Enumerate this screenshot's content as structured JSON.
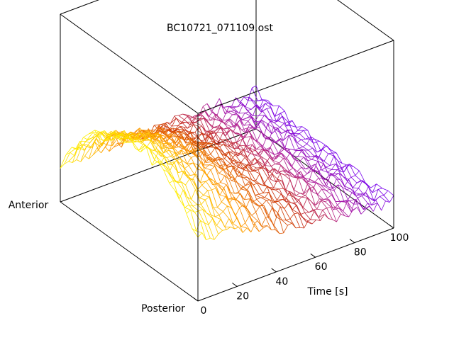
{
  "chart_data": {
    "type": "surface",
    "title": "BC10721_071109.ost",
    "xlabel": "Time [s]",
    "x_ticks": [
      0,
      20,
      40,
      60,
      80,
      100
    ],
    "xlim": [
      0,
      100
    ],
    "y_axis_labels": {
      "near": "Posterior",
      "far": "Anterior"
    },
    "colormap": [
      "#ffee00",
      "#ff9900",
      "#cc3300",
      "#b0209a",
      "#7700ee"
    ],
    "ridge_profile": {
      "x": [
        0,
        20,
        40,
        60,
        80,
        100
      ],
      "relative_height": [
        0.78,
        0.6,
        0.38,
        0.2,
        0.08,
        0.0
      ]
    },
    "grid": false,
    "style": "wireframe"
  }
}
